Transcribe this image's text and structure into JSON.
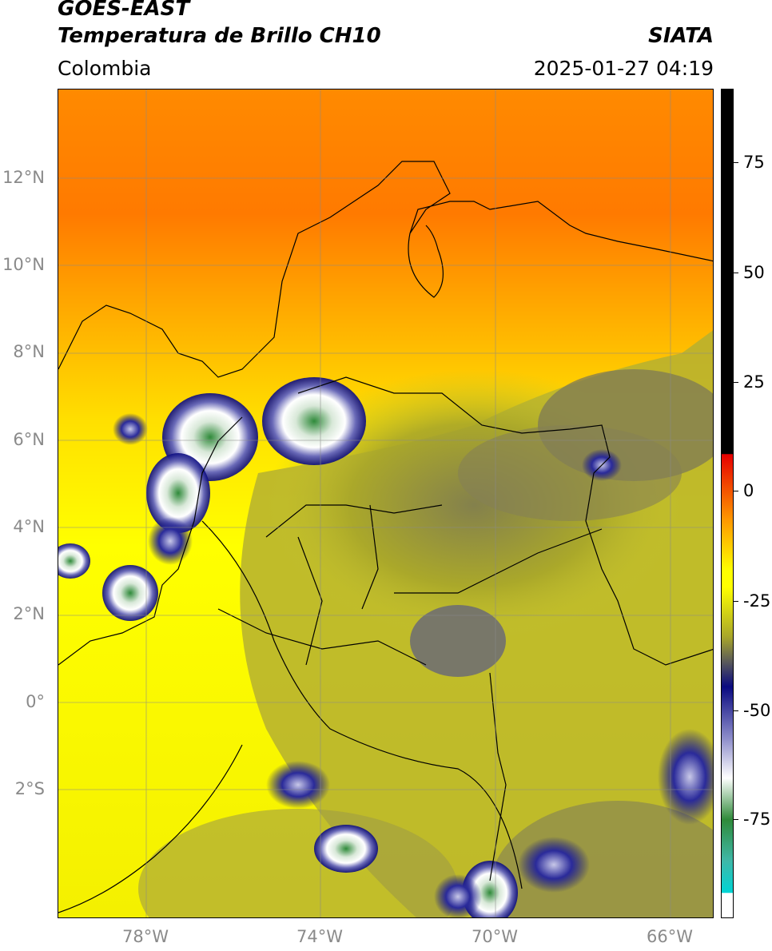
{
  "header": {
    "title_line1": "GOES-EAST",
    "title_line2": "Temperatura de Brillo CH10",
    "brand": "SIATA",
    "region": "Colombia",
    "timestamp": "2025-01-27 04:19"
  },
  "map": {
    "extent": {
      "lon_min": -80,
      "lon_max": -65,
      "lat_min": -5,
      "lat_max": 14
    },
    "lat_labels": [
      "12°N",
      "10°N",
      "8°N",
      "6°N",
      "4°N",
      "2°N",
      "0°",
      "2°S"
    ],
    "lon_labels": [
      "78°W",
      "74°W",
      "70°W",
      "66°W"
    ],
    "gridlines": true
  },
  "colorbar": {
    "range": [
      -95,
      90
    ],
    "tick_labels": [
      "75",
      "50",
      "25",
      "0",
      "-25",
      "-50",
      "-75"
    ],
    "colors": {
      "black": "#000000",
      "red": "#e60000",
      "orange": "#ff9a00",
      "yellow": "#ffff00",
      "olive": "#a8a62a",
      "navy": "#0a0a80",
      "white": "#ffffff",
      "green": "#2f8a3a",
      "cyan": "#00d4d4"
    }
  }
}
